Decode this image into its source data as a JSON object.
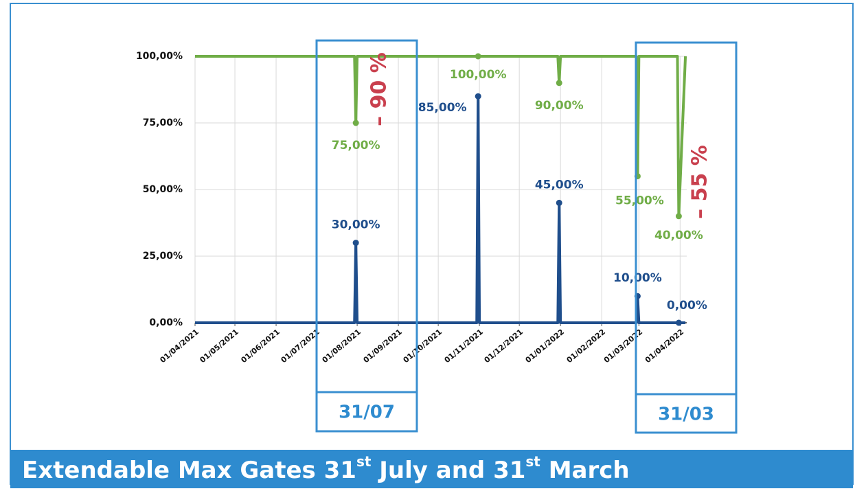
{
  "chart_data": {
    "type": "line",
    "x": [
      "01/04/2021",
      "30/07/2021",
      "31/07/2021",
      "01/08/2021",
      "30/10/2021",
      "31/10/2021",
      "01/11/2021",
      "30/12/2021",
      "31/12/2021",
      "01/01/2022",
      "27/02/2022",
      "28/02/2022",
      "01/03/2022",
      "30/03/2022",
      "31/03/2022",
      "05/04/2022"
    ],
    "series": [
      {
        "color": "#70ad47",
        "values": [
          100,
          100,
          75,
          100,
          100,
          100,
          100,
          100,
          90,
          100,
          100,
          55,
          100,
          100,
          40,
          100
        ],
        "value_labels": [
          null,
          null,
          "75,00%",
          null,
          null,
          "100,00%",
          null,
          null,
          "90,00%",
          null,
          null,
          "55,00%",
          null,
          null,
          "40,00%",
          null
        ]
      },
      {
        "color": "#1f4e8c",
        "values": [
          0,
          0,
          30,
          0,
          0,
          85,
          0,
          0,
          45,
          0,
          0,
          10,
          0,
          0,
          0,
          0
        ],
        "value_labels": [
          null,
          null,
          "30,00%",
          null,
          null,
          "85,00%",
          null,
          null,
          "45,00%",
          null,
          null,
          "10,00%",
          null,
          null,
          "0,00%",
          null
        ]
      }
    ],
    "xlim": [
      "01/04/2021",
      "06/04/2022"
    ],
    "xticks": [
      "01/04/2021",
      "01/05/2021",
      "01/06/2021",
      "01/07/2021",
      "01/08/2021",
      "01/09/2021",
      "01/10/2021",
      "01/11/2021",
      "01/12/2021",
      "01/01/2022",
      "01/02/2022",
      "01/03/2022",
      "01/04/2022"
    ],
    "ylim": [
      0,
      100
    ],
    "yticks": [
      {
        "value": 0,
        "label": "0,00%"
      },
      {
        "value": 25,
        "label": "25,00%"
      },
      {
        "value": 50,
        "label": "50,00%"
      },
      {
        "value": 75,
        "label": "75,00%"
      },
      {
        "value": 100,
        "label": "100,00%"
      }
    ],
    "grid": true,
    "annotations": [
      "– 90 %",
      "– 55 %"
    ],
    "highlights": [
      "31/07",
      "31/03"
    ]
  },
  "footer": {
    "title": [
      "Extendable Max Gates 31",
      "st",
      " July and 31",
      "st",
      " March"
    ]
  }
}
